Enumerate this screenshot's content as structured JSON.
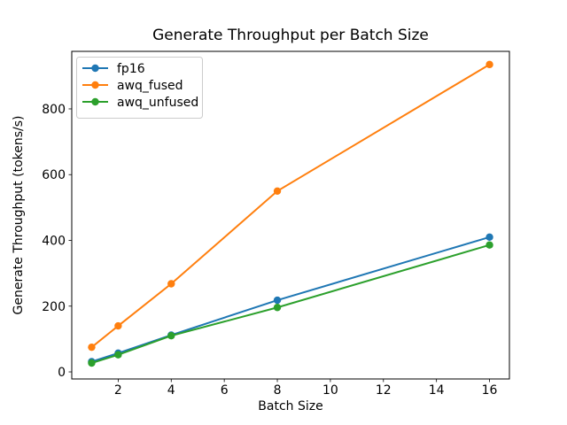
{
  "figure": {
    "title": "Generate Throughput per Batch Size",
    "xlabel": "Batch Size",
    "ylabel": "Generate Throughput (tokens/s)"
  },
  "chart_data": {
    "type": "line",
    "title": "Generate Throughput per Batch Size",
    "xlabel": "Batch Size",
    "ylabel": "Generate Throughput (tokens/s)",
    "x": [
      1,
      2,
      4,
      8,
      16
    ],
    "series": [
      {
        "name": "fp16",
        "color": "#1f77b4",
        "values": [
          31,
          57,
          112,
          218,
          410
        ]
      },
      {
        "name": "awq_fused",
        "color": "#ff7f0e",
        "values": [
          75,
          140,
          268,
          550,
          935
        ]
      },
      {
        "name": "awq_unfused",
        "color": "#2ca02c",
        "values": [
          27,
          52,
          110,
          196,
          386
        ]
      }
    ],
    "xticks": [
      2,
      4,
      6,
      8,
      10,
      12,
      14,
      16
    ],
    "yticks": [
      0,
      200,
      400,
      600,
      800
    ],
    "xlim": [
      0.25,
      16.75
    ],
    "ylim": [
      -21.5,
      975
    ],
    "grid": false,
    "marker": "o",
    "legend": {
      "position": "upper left",
      "entries": [
        "fp16",
        "awq_fused",
        "awq_unfused"
      ]
    },
    "colors": {
      "background": "#ffffff",
      "spine": "#000000",
      "text": "#000000",
      "legend_border": "#cccccc",
      "legend_background": "#ffffff"
    }
  }
}
